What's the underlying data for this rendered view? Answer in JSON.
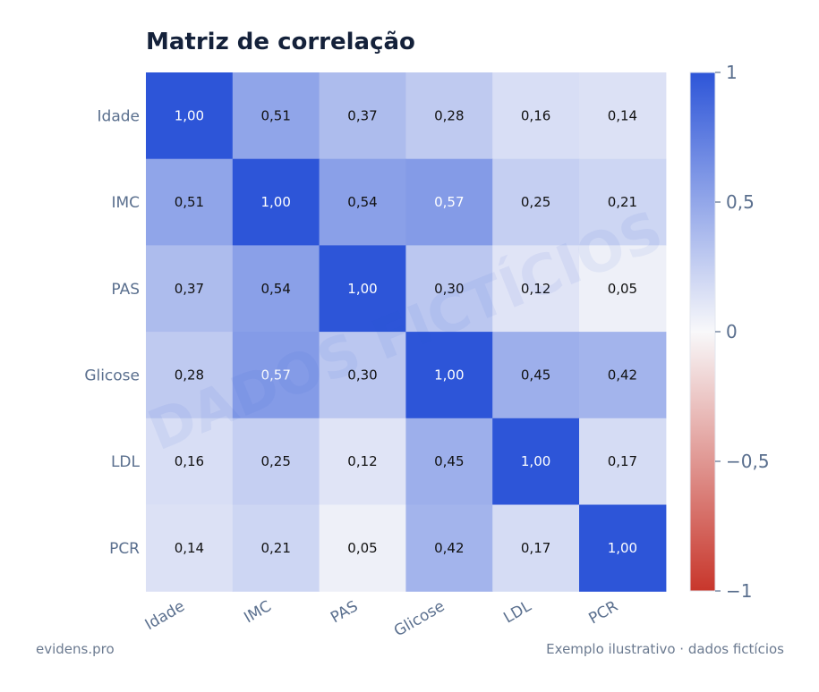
{
  "title": "Matriz de correlação",
  "footer": {
    "left": "evidens.pro",
    "right": "Exemplo ilustrativo · dados fictícios"
  },
  "watermark": "DADOS FICTÍCIOS",
  "colors": {
    "positive": "#2d55d8",
    "neutral": "#f8f8fa",
    "negative": "#c8362b",
    "tick_label": "#5a6f8e",
    "cell_text_dark": "#111111",
    "cell_text_light": "#ffffff"
  },
  "chart_data": {
    "type": "heatmap",
    "title": "Matriz de correlação",
    "x_labels": [
      "Idade",
      "IMC",
      "PAS",
      "Glicose",
      "LDL",
      "PCR"
    ],
    "y_labels": [
      "Idade",
      "IMC",
      "PAS",
      "Glicose",
      "LDL",
      "PCR"
    ],
    "values": [
      [
        1.0,
        0.51,
        0.37,
        0.28,
        0.16,
        0.14
      ],
      [
        0.51,
        1.0,
        0.54,
        0.57,
        0.25,
        0.21
      ],
      [
        0.37,
        0.54,
        1.0,
        0.3,
        0.12,
        0.05
      ],
      [
        0.28,
        0.57,
        0.3,
        1.0,
        0.45,
        0.42
      ],
      [
        0.16,
        0.25,
        0.12,
        0.45,
        1.0,
        0.17
      ],
      [
        0.14,
        0.21,
        0.05,
        0.42,
        0.17,
        1.0
      ]
    ],
    "value_labels": [
      [
        "1,00",
        "0,51",
        "0,37",
        "0,28",
        "0,16",
        "0,14"
      ],
      [
        "0,51",
        "1,00",
        "0,54",
        "0,57",
        "0,25",
        "0,21"
      ],
      [
        "0,37",
        "0,54",
        "1,00",
        "0,30",
        "0,12",
        "0,05"
      ],
      [
        "0,28",
        "0,57",
        "0,30",
        "1,00",
        "0,45",
        "0,42"
      ],
      [
        "0,16",
        "0,25",
        "0,12",
        "0,45",
        "1,00",
        "0,17"
      ],
      [
        "0,14",
        "0,21",
        "0,05",
        "0,42",
        "0,17",
        "1,00"
      ]
    ],
    "colorbar": {
      "range": [
        -1,
        1
      ],
      "ticks": [
        1,
        0.5,
        0,
        -0.5,
        -1
      ],
      "tick_labels": [
        "1",
        "0,5",
        "0",
        "−0,5",
        "−1"
      ]
    }
  }
}
